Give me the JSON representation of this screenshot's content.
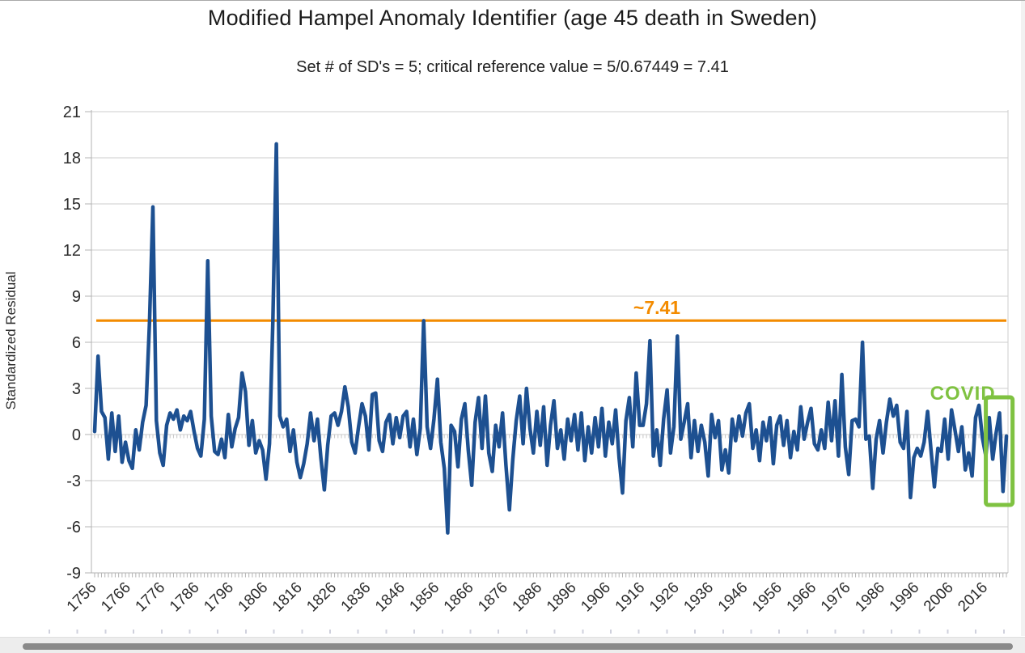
{
  "chart_data": {
    "type": "line",
    "title": "Modified Hampel Anomaly Identifier (age 45 death in Sweden)",
    "subtitle": "Set # of SD's = 5; critical reference value = 5/0.67449 = 7.41",
    "xlabel": "",
    "ylabel": "Standardized Residual",
    "ylim": [
      -9,
      21
    ],
    "yticks": [
      21,
      18,
      15,
      12,
      9,
      6,
      3,
      0,
      -3,
      -6,
      -9
    ],
    "x_start": 1756,
    "x_end": 2022,
    "xtick_labels": [
      "1756",
      "1766",
      "1776",
      "1786",
      "1796",
      "1806",
      "1816",
      "1826",
      "1836",
      "1846",
      "1856",
      "1866",
      "1876",
      "1886",
      "1896",
      "1906",
      "1916",
      "1926",
      "1936",
      "1946",
      "1956",
      "1966",
      "1976",
      "1986",
      "1996",
      "2006",
      "2016"
    ],
    "grid": "horizontal",
    "legend": "none",
    "series": [
      {
        "name": "Standardized Residual",
        "color": "#1d5091",
        "values": [
          0.2,
          5.1,
          1.5,
          1.1,
          -1.6,
          1.4,
          -1.1,
          1.2,
          -1.8,
          -0.5,
          -1.7,
          -2.2,
          0.3,
          -1.0,
          0.8,
          1.9,
          7.3,
          14.8,
          0.9,
          -1.2,
          -2.0,
          0.6,
          1.4,
          1.0,
          1.6,
          0.3,
          1.2,
          0.9,
          1.5,
          0.2,
          -0.9,
          -1.4,
          1.0,
          11.3,
          1.2,
          -1.1,
          -1.3,
          -0.3,
          -1.5,
          1.3,
          -0.8,
          0.4,
          1.1,
          4.0,
          2.8,
          -0.7,
          0.9,
          -1.2,
          -0.4,
          -1.0,
          -2.9,
          -0.6,
          7.4,
          18.9,
          1.2,
          0.5,
          1.0,
          -1.1,
          0.3,
          -1.8,
          -2.8,
          -1.9,
          -0.6,
          1.4,
          -0.4,
          1.0,
          -1.5,
          -3.6,
          -0.7,
          1.2,
          1.4,
          0.6,
          1.5,
          3.1,
          1.8,
          -0.5,
          -1.2,
          0.5,
          2.0,
          1.2,
          -1.0,
          2.6,
          2.7,
          -0.4,
          -1.1,
          0.8,
          1.3,
          -0.6,
          1.1,
          -0.2,
          1.2,
          1.5,
          -0.8,
          1.0,
          -1.3,
          0.4,
          7.4,
          0.5,
          -0.9,
          1.0,
          3.6,
          -0.5,
          -2.2,
          -6.4,
          0.6,
          0.2,
          -2.1,
          1.0,
          2.0,
          -1.0,
          -3.3,
          0.8,
          2.4,
          -0.9,
          2.5,
          -1.2,
          -2.4,
          0.6,
          -0.8,
          1.4,
          -2.0,
          -4.9,
          -1.6,
          0.9,
          2.5,
          -0.6,
          3.0,
          0.4,
          -1.2,
          1.5,
          -0.7,
          1.8,
          -2.0,
          0.6,
          2.2,
          -0.9,
          0.3,
          -1.6,
          1.0,
          -0.4,
          1.3,
          -1.0,
          1.4,
          -1.7,
          0.5,
          -1.2,
          1.1,
          -0.8,
          1.7,
          -1.4,
          0.8,
          -0.6,
          1.6,
          -1.5,
          -3.8,
          0.9,
          2.4,
          -0.8,
          4.0,
          0.6,
          0.6,
          2.0,
          6.1,
          -1.4,
          0.3,
          -2.0,
          1.0,
          2.9,
          -1.2,
          0.5,
          6.4,
          -0.3,
          0.8,
          2.0,
          -1.5,
          0.9,
          -1.1,
          0.6,
          -0.5,
          -2.7,
          1.3,
          -0.2,
          0.9,
          -2.3,
          -1.0,
          -2.5,
          1.0,
          -0.4,
          1.2,
          -0.1,
          1.4,
          2.0,
          -0.9,
          0.3,
          -1.7,
          0.8,
          -0.4,
          1.1,
          -1.9,
          0.6,
          1.2,
          -0.7,
          0.9,
          -1.5,
          0.2,
          -1.0,
          1.8,
          -0.3,
          0.8,
          1.7,
          -0.6,
          -1.0,
          0.3,
          -0.9,
          2.1,
          -0.4,
          2.2,
          -1.4,
          3.9,
          -0.8,
          -2.6,
          0.9,
          1.0,
          0.5,
          6.0,
          -0.3,
          -0.1,
          -3.5,
          -0.3,
          0.9,
          -1.2,
          0.8,
          2.3,
          1.2,
          1.9,
          -0.5,
          -0.9,
          1.5,
          -4.1,
          -1.5,
          -0.9,
          -1.4,
          -0.5,
          1.5,
          -1.0,
          -3.4,
          -0.9,
          -1.1,
          1.0,
          -1.6,
          1.6,
          0.3,
          -1.1,
          0.5,
          -2.3,
          -1.2,
          -2.7,
          1.1,
          1.9,
          -0.2,
          -1.4,
          1.1,
          -1.6,
          0.1,
          1.4,
          -3.7,
          -0.1
        ]
      }
    ],
    "reference_line": {
      "value": 7.41,
      "label": "~7.41",
      "color": "#f38b00"
    },
    "annotations": [
      {
        "kind": "text",
        "text": "COVID",
        "color": "#7fc241",
        "x_year": 2009.3,
        "y_value": 2.75
      },
      {
        "kind": "box",
        "color": "#7fc241",
        "x_year_start": 2016,
        "x_year_end": 2023.8,
        "y_top": 2.42,
        "y_bottom": -4.58
      }
    ]
  }
}
